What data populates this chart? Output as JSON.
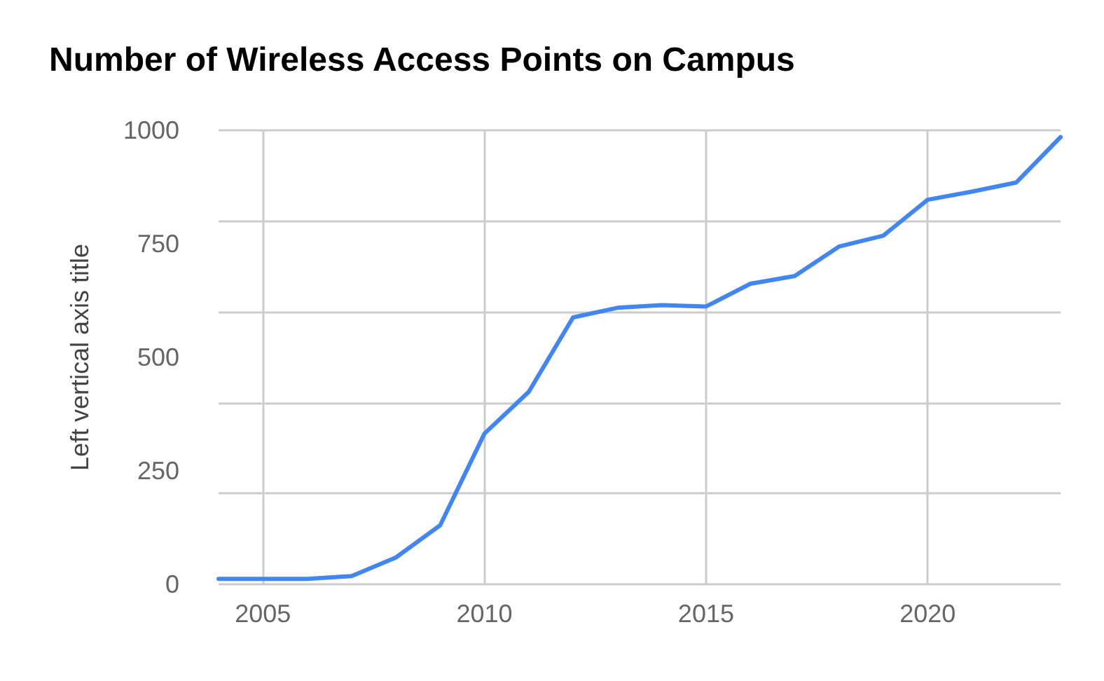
{
  "chart_data": {
    "type": "line",
    "title": "Number of Wireless Access Points on Campus",
    "ylabel": "Left vertical axis title",
    "x": [
      2004,
      2005,
      2006,
      2007,
      2008,
      2009,
      2010,
      2011,
      2012,
      2013,
      2014,
      2015,
      2016,
      2017,
      2018,
      2019,
      2020,
      2021,
      2022,
      2023
    ],
    "series": [
      {
        "color": "#4285f4",
        "values": [
          12,
          12,
          12,
          18,
          59,
          130,
          332,
          424,
          588,
          609,
          615,
          612,
          662,
          679,
          744,
          768,
          847,
          865,
          885,
          985
        ]
      }
    ],
    "xlim": [
      2004,
      2023
    ],
    "xticks": [
      2005,
      2010,
      2015,
      2020
    ],
    "ylim": [
      0,
      1000
    ],
    "yticks": [
      0,
      250,
      500,
      750,
      1000
    ],
    "grid": true,
    "marker": "none",
    "line_style": "solid"
  }
}
